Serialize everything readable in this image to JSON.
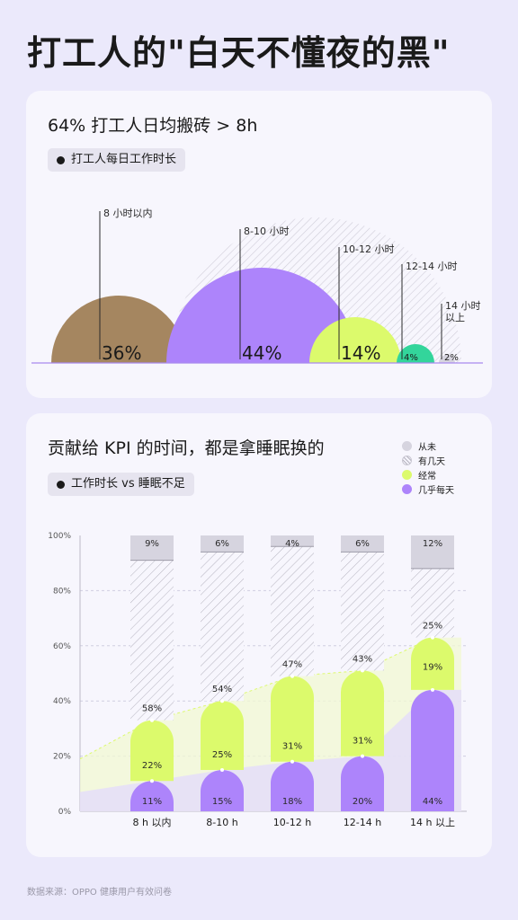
{
  "page": {
    "title": "打工人的\"白天不懂夜的黑\"",
    "source": "数据来源：OPPO 健康用户有效问卷"
  },
  "card1": {
    "title": "64% 打工人日均搬砖 > 8h",
    "tag": "打工人每日工作时长"
  },
  "card2": {
    "title": "贡献给 KPI 的时间，都是拿睡眠换的",
    "tag": "工作时长 vs 睡眠不足"
  },
  "colors": {
    "brown": "#a58660",
    "purple": "#ad84fb",
    "lime": "#dcfa6c",
    "green": "#33d59b",
    "gray": "#d6d4df",
    "stripe": "#c9c7d2",
    "axis": "#a98af0"
  },
  "chart_data": [
    {
      "type": "area",
      "subtype": "semicircle",
      "categories": [
        "8 小时以内",
        "8-10 小时",
        "10-12 小时",
        "12-14 小时",
        "14 小时以上"
      ],
      "values": [
        36,
        44,
        14,
        4,
        2
      ],
      "labels": [
        "36%",
        "44%",
        "14%",
        "4%",
        "2%"
      ],
      "series_colors": [
        "brown",
        "purple",
        "lime",
        "green",
        "gray"
      ]
    },
    {
      "type": "bar",
      "stacked": true,
      "categories": [
        "8 h 以内",
        "8-10 h",
        "10-12 h",
        "12-14 h",
        "14 h 以上"
      ],
      "yticks": [
        "0%",
        "20%",
        "40%",
        "60%",
        "80%",
        "100%"
      ],
      "ylim": [
        0,
        100
      ],
      "series": [
        {
          "name": "几乎每天",
          "color": "purple",
          "values": [
            11,
            15,
            18,
            20,
            44
          ]
        },
        {
          "name": "经常",
          "color": "lime",
          "values": [
            22,
            25,
            31,
            31,
            19
          ]
        },
        {
          "name": "有几天",
          "color": "stripe",
          "values": [
            58,
            54,
            47,
            43,
            25
          ]
        },
        {
          "name": "从未",
          "color": "gray",
          "values": [
            9,
            6,
            4,
            6,
            12
          ]
        }
      ],
      "legend": "top-right"
    }
  ]
}
